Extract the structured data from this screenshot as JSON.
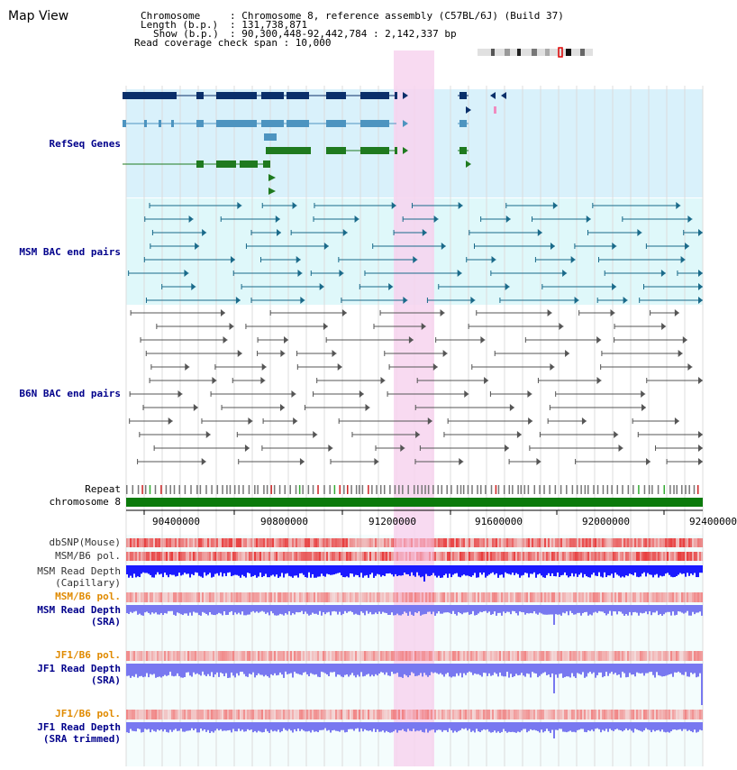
{
  "page_title": "Map View",
  "info": {
    "chromosome_key": "Chromosome",
    "chromosome_value": ": Chromosome 8, reference assembly (C57BL/6J) (Build 37)",
    "length_key": "Length (b.p.)",
    "length_value": ": 131,738,871",
    "show_key": "Show (b.p.)",
    "show_value": ": 90,300,448-92,442,784 : 2,142,337 bp",
    "coverage_line": "Read coverage check span : 10,000"
  },
  "tracks": {
    "refseq": "RefSeq Genes",
    "msm_bac": "MSM BAC end pairs",
    "b6n_bac": "B6N BAC end pairs",
    "repeat": "Repeat",
    "chromosome": "chromosome 8",
    "dbsnp": "dbSNP(Mouse)",
    "msm_b6_pol_1": "MSM/B6 pol.",
    "msm_read_depth_cap_1": "MSM Read Depth",
    "msm_read_depth_cap_2": "(Capillary)",
    "msm_b6_pol_2": "MSM/B6 pol.",
    "msm_read_depth_sra_1": "MSM Read Depth",
    "msm_read_depth_sra_2": "(SRA)",
    "jf1_b6_pol_1": "JF1/B6 pol.",
    "jf1_read_depth_sra_1": "JF1 Read Depth",
    "jf1_read_depth_sra_2": "(SRA)",
    "jf1_b6_pol_2": "JF1/B6 pol.",
    "jf1_read_depth_trim_1": "JF1 Read Depth",
    "jf1_read_depth_trim_2": "(SRA trimmed)"
  },
  "axis_ticks": [
    "90400000",
    "90800000",
    "91200000",
    "91600000",
    "92000000",
    "92400000"
  ],
  "colors": {
    "refseq_dark": "#0a2f6a",
    "refseq_mid": "#4d94c0",
    "refseq_green": "#1f7a1f",
    "refseq_bg": "#d9f1fb",
    "msm_bg": "#dff8fa",
    "highlight": "#f7d3ef",
    "chromosome_bar": "#0b7a0b",
    "label_blue": "#00008b",
    "label_orange": "#e08a00",
    "depth_blue": "#1a1aff",
    "depth_light": "#7878f0"
  }
}
